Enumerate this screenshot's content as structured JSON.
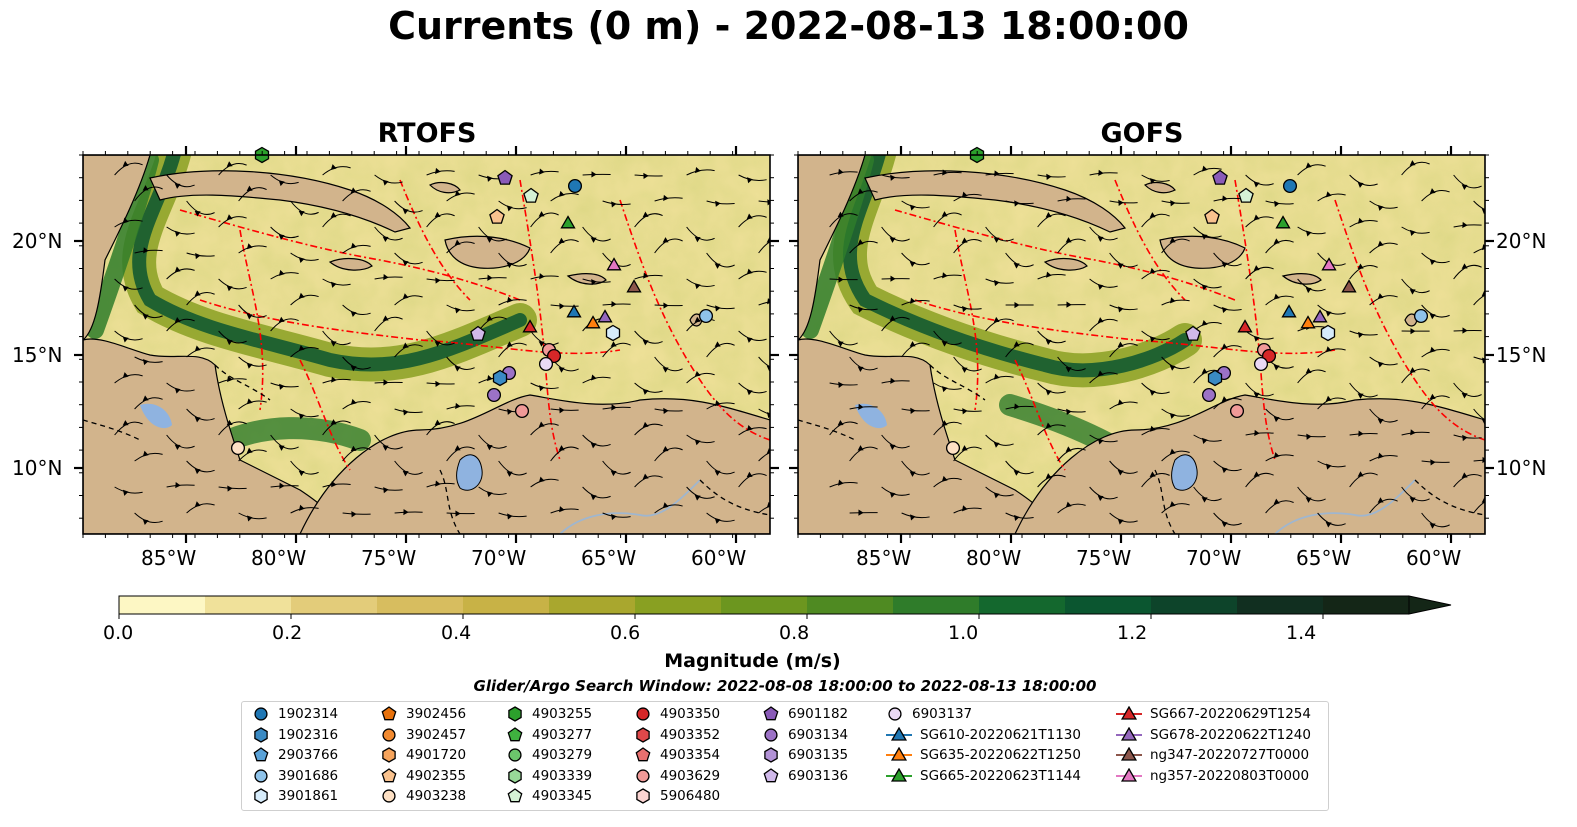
{
  "title": "Currents (0 m) - 2022-08-13 18:00:00",
  "panels": [
    {
      "name": "RTOFS"
    },
    {
      "name": "GOFS"
    }
  ],
  "lat_ticks": [
    "20°N",
    "15°N",
    "10°N"
  ],
  "lon_ticks": [
    "85°W",
    "80°W",
    "75°W",
    "70°W",
    "65°W",
    "60°W"
  ],
  "colorbar": {
    "label": "Magnitude (m/s)",
    "ticks": [
      "0.0",
      "0.2",
      "0.4",
      "0.6",
      "0.8",
      "1.0",
      "1.2",
      "1.4"
    ],
    "range": [
      0,
      1.5
    ],
    "extend": "max",
    "colors": [
      "#fdf7c4",
      "#f0e19a",
      "#e3cc7a",
      "#d7bd5f",
      "#c8b246",
      "#a9a72e",
      "#89a022",
      "#6c961f",
      "#4f8a22",
      "#2f7c2a",
      "#14682e",
      "#0b5630",
      "#0d442a",
      "#112f20",
      "#142617"
    ]
  },
  "search_window": "Glider/Argo Search Window: 2022-08-08 18:00:00 to 2022-08-13 18:00:00",
  "legend": {
    "columns": [
      [
        {
          "label": "1902314",
          "marker": "circle",
          "color": "#1f77b4"
        },
        {
          "label": "1902316",
          "marker": "hexagon",
          "color": "#3a8ac4"
        },
        {
          "label": "2903766",
          "marker": "pentagon",
          "color": "#5aa2d8"
        },
        {
          "label": "3901686",
          "marker": "circle",
          "color": "#8fc3ea"
        },
        {
          "label": "3901861",
          "marker": "hexagon",
          "color": "#d6ebfa"
        }
      ],
      [
        {
          "label": "3902456",
          "marker": "pentagon",
          "color": "#e8720c"
        },
        {
          "label": "3902457",
          "marker": "circle",
          "color": "#f28a30"
        },
        {
          "label": "4901720",
          "marker": "hexagon",
          "color": "#f6a45c"
        },
        {
          "label": "4902355",
          "marker": "pentagon",
          "color": "#f9c28e"
        },
        {
          "label": "4903238",
          "marker": "circle",
          "color": "#fde0c4"
        }
      ],
      [
        {
          "label": "4903255",
          "marker": "hexagon",
          "color": "#2ca02c"
        },
        {
          "label": "4903277",
          "marker": "pentagon",
          "color": "#3fb13f"
        },
        {
          "label": "4903279",
          "marker": "circle",
          "color": "#6cc66c"
        },
        {
          "label": "4903339",
          "marker": "hexagon",
          "color": "#98d998"
        },
        {
          "label": "4903345",
          "marker": "pentagon",
          "color": "#d5f2d5"
        }
      ],
      [
        {
          "label": "4903350",
          "marker": "circle",
          "color": "#d62728"
        },
        {
          "label": "4903352",
          "marker": "hexagon",
          "color": "#e0484a"
        },
        {
          "label": "4903354",
          "marker": "pentagon",
          "color": "#e8706f"
        },
        {
          "label": "4903629",
          "marker": "circle",
          "color": "#f09a98"
        },
        {
          "label": "5906480",
          "marker": "hexagon",
          "color": "#fbd4d2"
        }
      ],
      [
        {
          "label": "6901182",
          "marker": "pentagon",
          "color": "#8a5bb8"
        },
        {
          "label": "6903134",
          "marker": "circle",
          "color": "#9c72c6"
        },
        {
          "label": "6903135",
          "marker": "hexagon",
          "color": "#b292d6"
        },
        {
          "label": "6903136",
          "marker": "pentagon",
          "color": "#d0b9ea"
        }
      ],
      [
        {
          "label": "6903137",
          "marker": "circle",
          "color": "#ead9f5"
        },
        {
          "label": "SG610-20220621T1130",
          "marker": "triangle-line",
          "color": "#1f77b4"
        },
        {
          "label": "SG635-20220622T1250",
          "marker": "triangle-line",
          "color": "#ff7f0e"
        },
        {
          "label": "SG665-20220623T1144",
          "marker": "triangle-line",
          "color": "#2ca02c"
        }
      ],
      [
        {
          "label": "SG667-20220629T1254",
          "marker": "triangle-line",
          "color": "#d62728"
        },
        {
          "label": "SG678-20220622T1240",
          "marker": "triangle-line",
          "color": "#9467bd"
        },
        {
          "label": "ng347-20220727T0000",
          "marker": "triangle-line",
          "color": "#8c564b"
        },
        {
          "label": "ng357-20220803T0000",
          "marker": "triangle-line",
          "color": "#e377c2"
        }
      ]
    ]
  },
  "map_colors": {
    "land": "#d2b48c",
    "lake": "#8fb3e0",
    "river": "#9fb6cf",
    "eez": "#ff0000",
    "streamline": "#000000"
  }
}
